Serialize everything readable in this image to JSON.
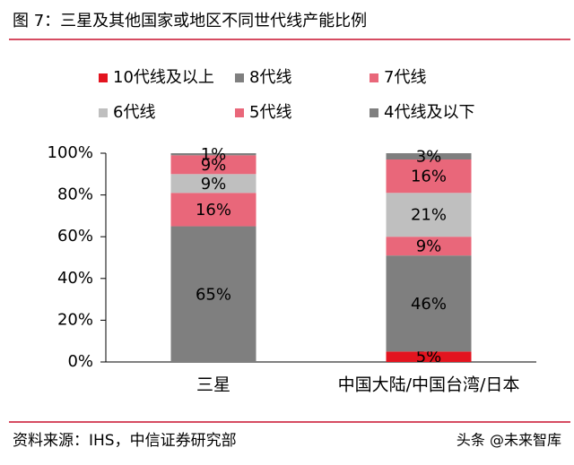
{
  "header": {
    "title": "图 7：三星及其他国家或地区不同世代线产能比例"
  },
  "chart_data": {
    "type": "stacked_bar",
    "categories": [
      "三星",
      "中国大陆/中国台湾/日本"
    ],
    "series": [
      {
        "name": "10代线及以上",
        "color": "#e3141f",
        "values": [
          0,
          5
        ],
        "value_labels": [
          null,
          "5%"
        ]
      },
      {
        "name": "8代线",
        "color": "#7f7f7f",
        "values": [
          65,
          46
        ],
        "value_labels": [
          "65%",
          "46%"
        ]
      },
      {
        "name": "7代线",
        "color": "#e9677a",
        "values": [
          16,
          9
        ],
        "value_labels": [
          "16%",
          "9%"
        ]
      },
      {
        "name": "6代线",
        "color": "#bfbfbf",
        "values": [
          9,
          21
        ],
        "value_labels": [
          "9%",
          "21%"
        ]
      },
      {
        "name": "5代线",
        "color": "#e9677a",
        "values": [
          9,
          16
        ],
        "value_labels": [
          "9%",
          "16%"
        ]
      },
      {
        "name": "4代线及以下",
        "color": "#7f7f7f",
        "values": [
          1,
          3
        ],
        "value_labels": [
          "1%",
          "3%"
        ]
      }
    ],
    "ylim": [
      0,
      100
    ],
    "yticks": [
      {
        "value": 0,
        "label": "0%"
      },
      {
        "value": 20,
        "label": "20%"
      },
      {
        "value": 40,
        "label": "40%"
      },
      {
        "value": 60,
        "label": "60%"
      },
      {
        "value": 80,
        "label": "80%"
      },
      {
        "value": 100,
        "label": "100%"
      }
    ]
  },
  "footer": {
    "source": "资料来源：IHS，中信证券研究部",
    "watermark": "头条 @未来智库"
  }
}
